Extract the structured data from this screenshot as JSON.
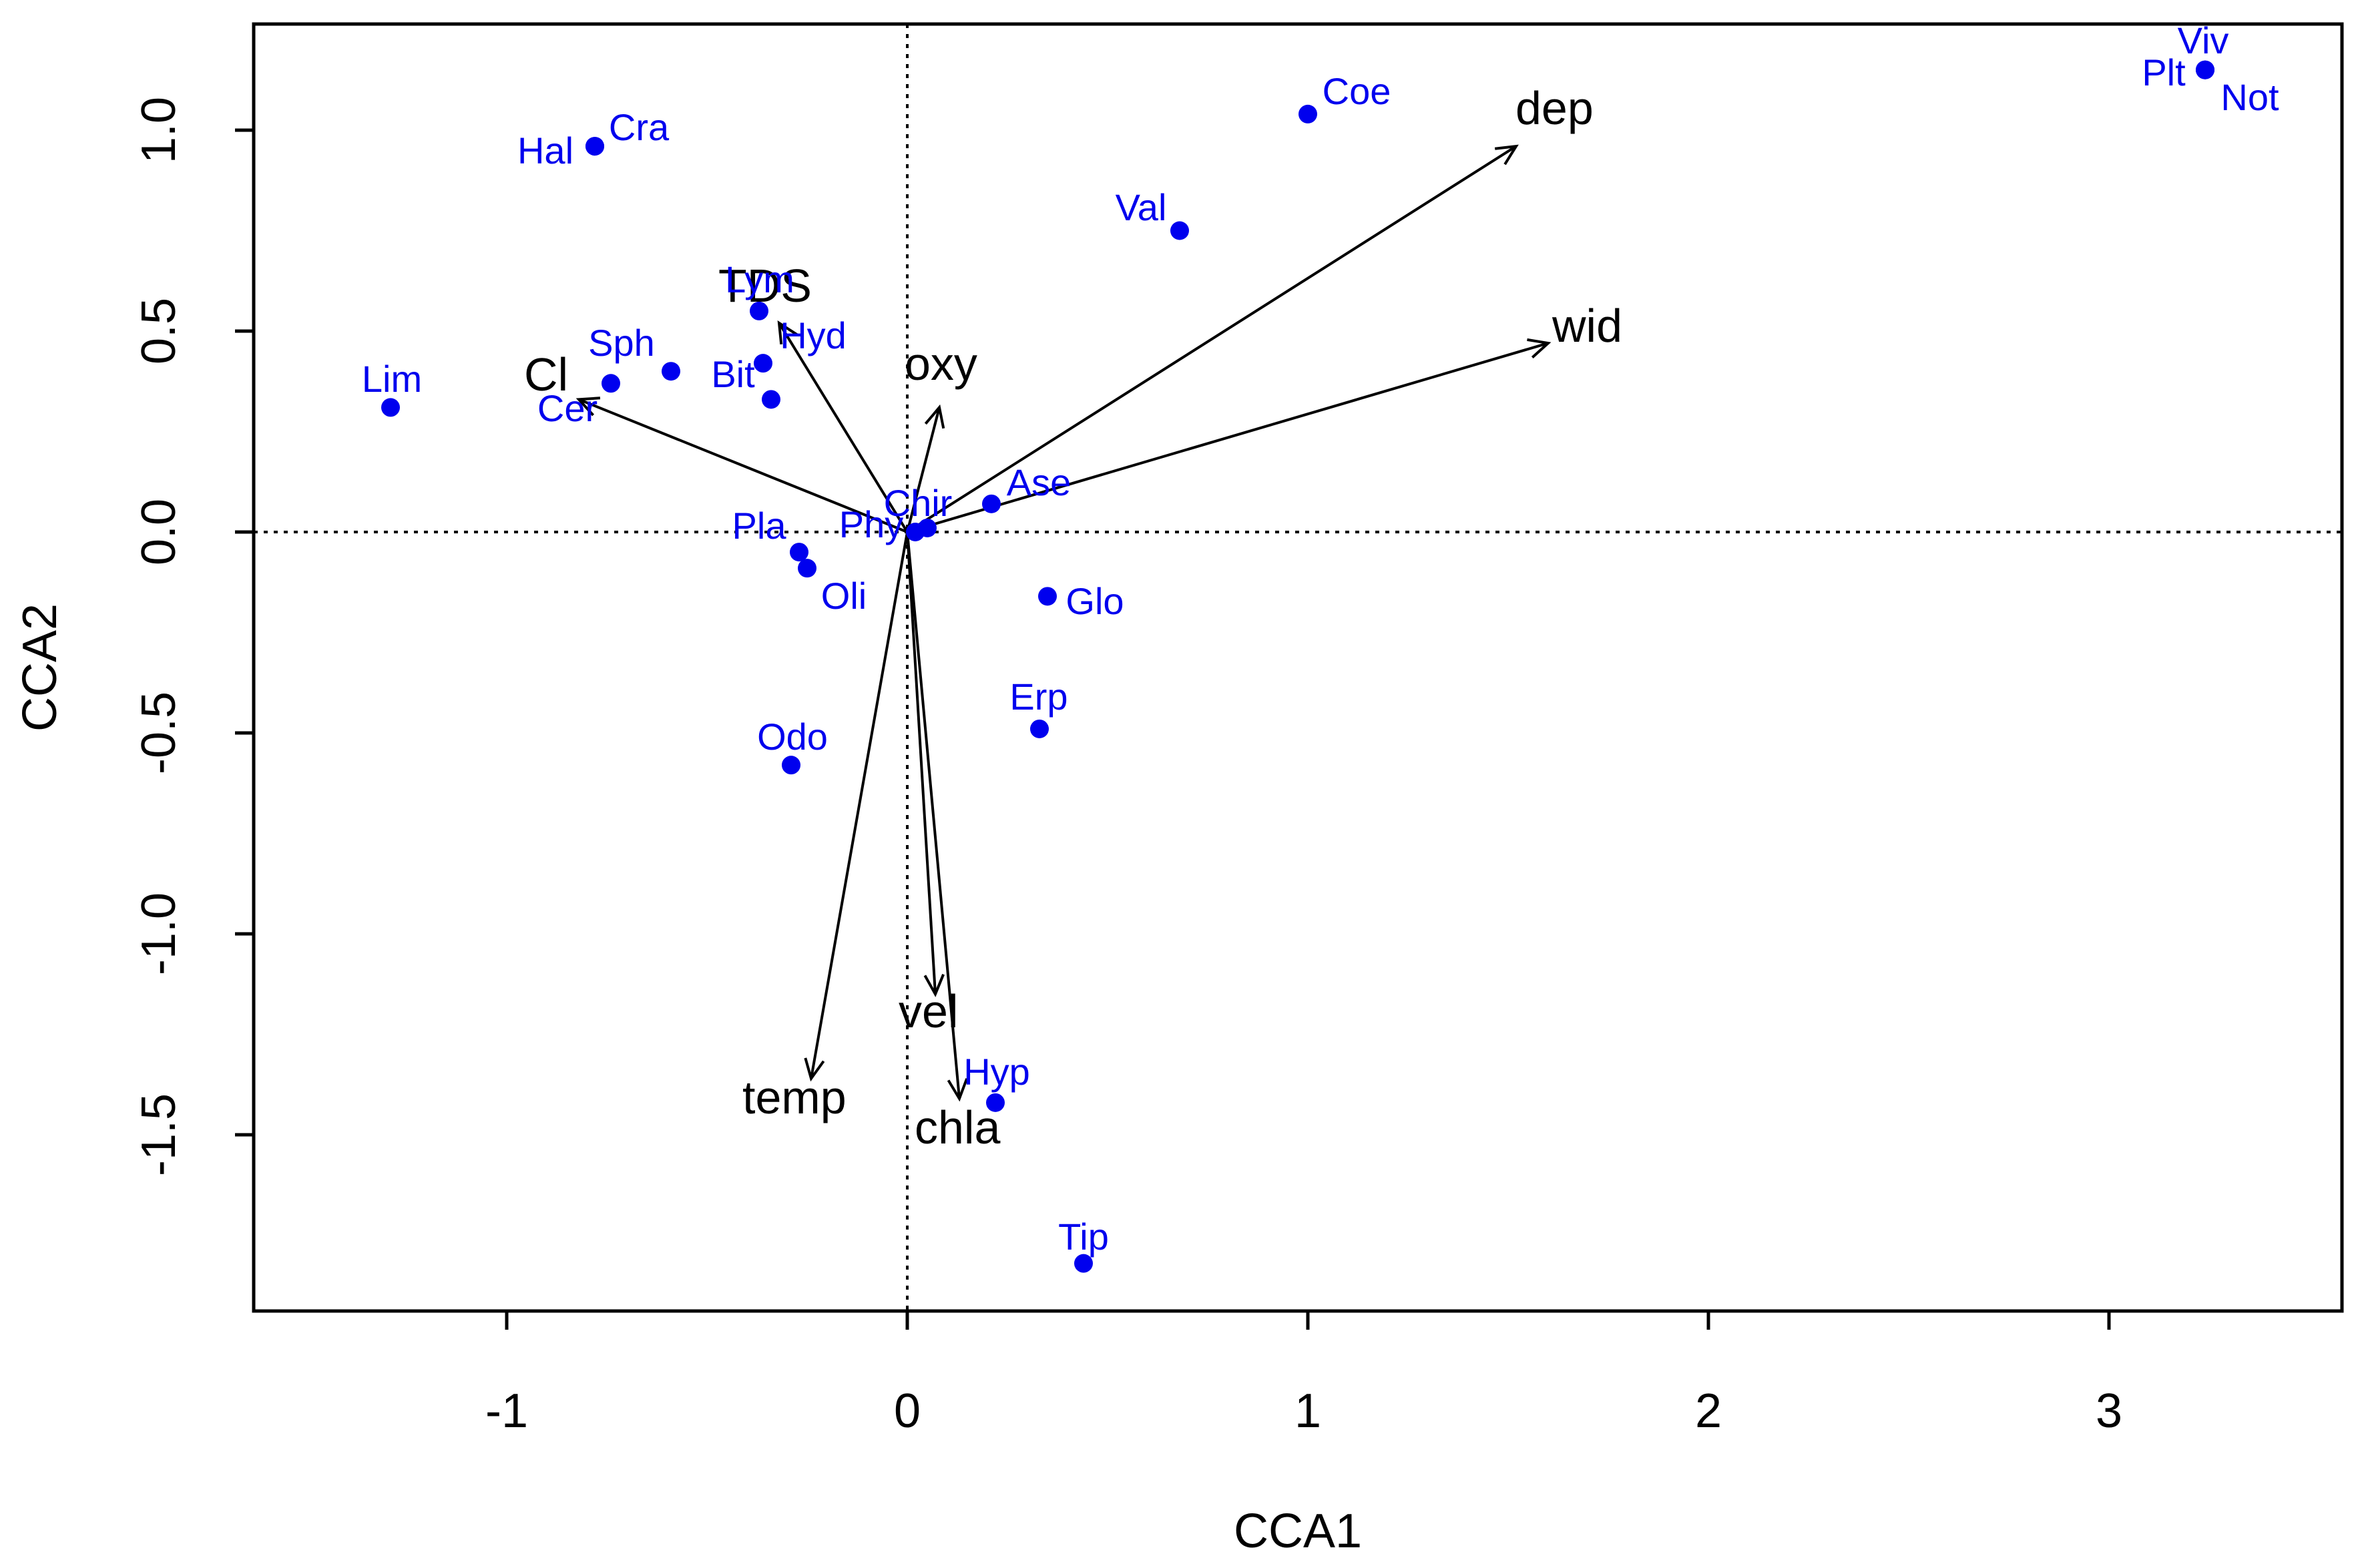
{
  "chart_data": {
    "type": "scatter",
    "title": "",
    "xlabel": "CCA1",
    "ylabel": "CCA2",
    "xlim": [
      -1.6,
      3.6
    ],
    "ylim": [
      -1.95,
      1.3
    ],
    "xticks": [
      -1,
      0,
      1,
      2,
      3
    ],
    "yticks": [
      1.0,
      0.5,
      0.0,
      -0.5,
      -1.0,
      -1.5
    ],
    "xtick_labels": [
      "-1",
      "0",
      "1",
      "2",
      "3"
    ],
    "ytick_labels": [
      "1.0",
      "0.5",
      "0.0",
      "-0.5",
      "-1.0",
      "-1.5"
    ],
    "reference_lines": {
      "x": 0,
      "y": 0,
      "style": "dotted"
    },
    "species_color": "#0000ee",
    "vector_color": "#000000",
    "species": [
      {
        "name": "Viv",
        "x": 3.24,
        "y": 1.15
      },
      {
        "name": "Plt",
        "x": 3.24,
        "y": 1.15
      },
      {
        "name": "Not",
        "x": 3.24,
        "y": 1.15
      },
      {
        "name": "Coe",
        "x": 1.0,
        "y": 1.04
      },
      {
        "name": "Cra",
        "x": -0.78,
        "y": 0.96
      },
      {
        "name": "Hal",
        "x": -0.78,
        "y": 0.96
      },
      {
        "name": "Val",
        "x": 0.68,
        "y": 0.75
      },
      {
        "name": "Lym",
        "x": -0.37,
        "y": 0.55
      },
      {
        "name": "Hyd",
        "x": -0.36,
        "y": 0.42
      },
      {
        "name": "Sph",
        "x": -0.59,
        "y": 0.4
      },
      {
        "name": "Cer",
        "x": -0.74,
        "y": 0.37
      },
      {
        "name": "Bit",
        "x": -0.34,
        "y": 0.33
      },
      {
        "name": "Lim",
        "x": -1.29,
        "y": 0.31
      },
      {
        "name": "Ase",
        "x": 0.21,
        "y": 0.07
      },
      {
        "name": "Chir",
        "x": 0.05,
        "y": 0.01
      },
      {
        "name": "Phy",
        "x": 0.02,
        "y": 0.0
      },
      {
        "name": "Pla",
        "x": -0.27,
        "y": -0.05
      },
      {
        "name": "Oli",
        "x": -0.25,
        "y": -0.09
      },
      {
        "name": "Glo",
        "x": 0.35,
        "y": -0.16
      },
      {
        "name": "Erp",
        "x": 0.33,
        "y": -0.49
      },
      {
        "name": "Odo",
        "x": -0.29,
        "y": -0.58
      },
      {
        "name": "Hyp",
        "x": 0.22,
        "y": -1.42
      },
      {
        "name": "Tip",
        "x": 0.44,
        "y": -1.82
      }
    ],
    "vectors": [
      {
        "name": "dep",
        "x": 1.52,
        "y": 0.96
      },
      {
        "name": "wid",
        "x": 1.6,
        "y": 0.47
      },
      {
        "name": "TDS",
        "x": -0.32,
        "y": 0.52
      },
      {
        "name": "Cl",
        "x": -0.82,
        "y": 0.33
      },
      {
        "name": "oxy",
        "x": 0.08,
        "y": 0.31
      },
      {
        "name": "vel",
        "x": 0.07,
        "y": -1.15
      },
      {
        "name": "chla",
        "x": 0.13,
        "y": -1.41
      },
      {
        "name": "temp",
        "x": -0.24,
        "y": -1.36
      }
    ]
  }
}
